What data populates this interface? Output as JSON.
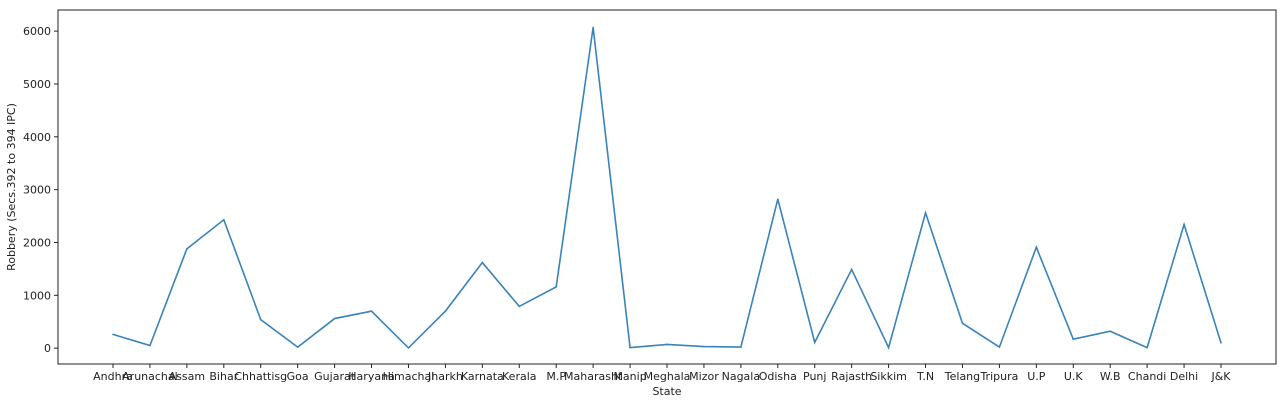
{
  "chart_data": {
    "type": "line",
    "title": "",
    "xlabel": "State",
    "ylabel": "Robbery (Secs.392 to 394 IPC)",
    "ylim": [
      -300,
      6400
    ],
    "yticks": [
      0,
      1000,
      2000,
      3000,
      4000,
      5000,
      6000
    ],
    "grid": false,
    "line_color": "#3a83b9",
    "categories": [
      "Andhra",
      "Arunachal",
      "Assam",
      "Bihar",
      "Chhattisg",
      "Goa",
      "Gujarat",
      "Haryana",
      "Himachal",
      "Jharkh",
      "Karnata",
      "Kerala",
      "M.P",
      "Maharasht",
      "Manip",
      "Meghala",
      "Mizor",
      "Nagala",
      "Odisha",
      "Punj",
      "Rajasth",
      "Sikkim",
      "T.N",
      "Telang",
      "Tripura",
      "U.P",
      "U.K",
      "W.B",
      "Chandi",
      "Delhi",
      "J&K"
    ],
    "values": [
      260,
      50,
      1880,
      2430,
      540,
      20,
      560,
      700,
      5,
      700,
      1620,
      790,
      1160,
      6070,
      10,
      70,
      30,
      20,
      2820,
      110,
      1490,
      10,
      2560,
      470,
      20,
      1910,
      170,
      320,
      10,
      2340,
      100
    ]
  }
}
